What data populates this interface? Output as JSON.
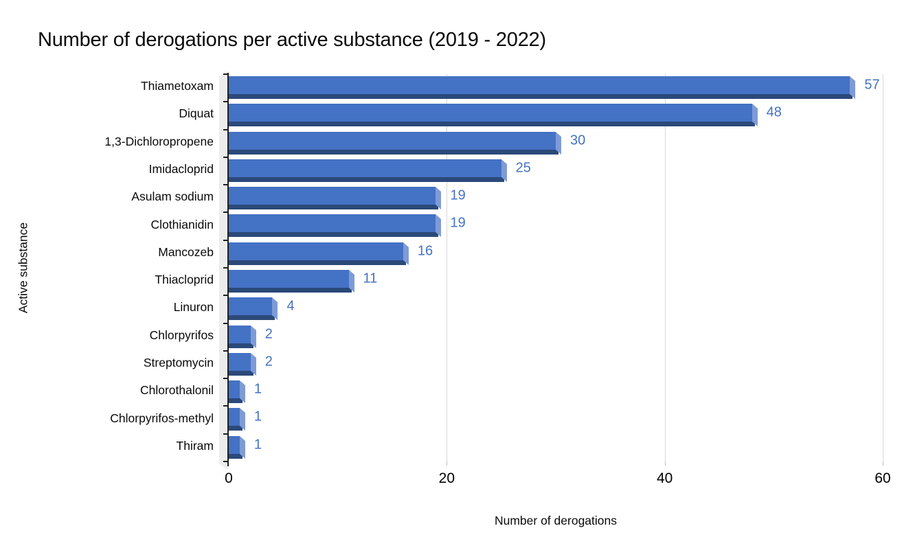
{
  "title": "Number of derogations per active substance (2019 - 2022)",
  "chart_data": {
    "type": "bar",
    "orientation": "horizontal",
    "style": "3d-bar",
    "title": "Number of derogations per active substance (2019 - 2022)",
    "categories": [
      "Thiametoxam",
      "Diquat",
      "1,3-Dichloropropene",
      "Imidacloprid",
      "Asulam sodium",
      "Clothianidin",
      "Mancozeb",
      "Thiacloprid",
      "Linuron",
      "Chlorpyrifos",
      "Streptomycin",
      "Chlorothalonil",
      "Chlorpyrifos-methyl",
      "Thiram"
    ],
    "values": [
      57,
      48,
      30,
      25,
      19,
      19,
      16,
      11,
      4,
      2,
      2,
      1,
      1,
      1
    ],
    "data_labels": [
      "57",
      "48",
      "30",
      "25",
      "19",
      "19",
      "16",
      "11",
      "4",
      "2",
      "2",
      "1",
      "1",
      "1"
    ],
    "xlabel": "Number of derogations",
    "ylabel": "Active substance",
    "xlim": [
      0,
      60
    ],
    "xticks": [
      0,
      20,
      40,
      60
    ],
    "grid": "vertical-gridlines-on"
  },
  "colors": {
    "bar_front": "#4472c4",
    "bar_end_facet": "#7e9bd8",
    "bar_bottom_face": "#2b4979",
    "value_label_text": "#4472c4",
    "gridline": "#d9d9d9",
    "axis_line": "#1f1f1f",
    "wall": "#ececec",
    "text": "#0a0a0a"
  }
}
